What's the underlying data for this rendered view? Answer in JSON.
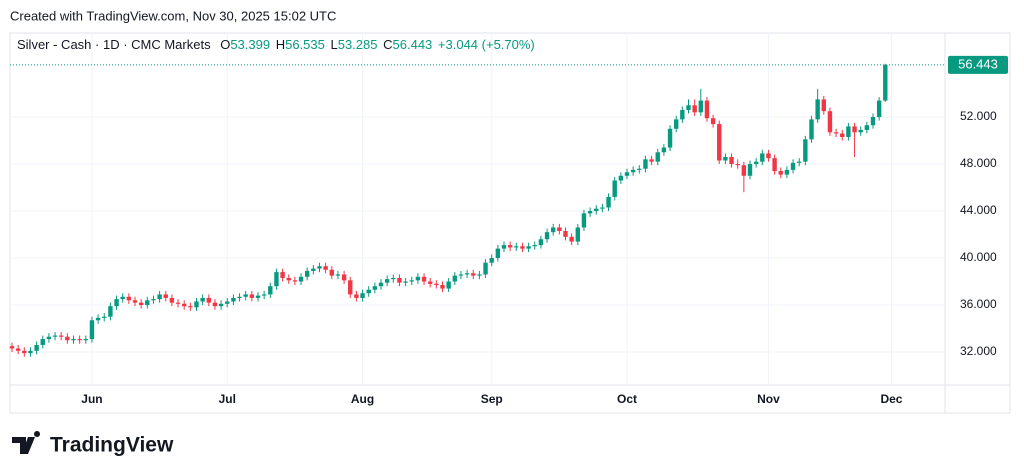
{
  "header": {
    "created": "Created with TradingView.com, Nov 30, 2025 15:02 UTC"
  },
  "chart_data": {
    "type": "candlestick",
    "title": "Silver - Cash · 1D · CMC Markets",
    "ohlc_labels": [
      "O",
      "H",
      "L",
      "C"
    ],
    "change_label": "+3.044 (+5.70%)",
    "categories": [
      null,
      null,
      null,
      null,
      null,
      null,
      null,
      null,
      null,
      null,
      null,
      null,
      null,
      "Jun",
      null,
      null,
      null,
      null,
      null,
      null,
      null,
      null,
      null,
      null,
      null,
      null,
      null,
      null,
      null,
      null,
      null,
      null,
      null,
      null,
      null,
      "Jul",
      null,
      null,
      null,
      null,
      null,
      null,
      null,
      null,
      null,
      null,
      null,
      null,
      null,
      null,
      null,
      null,
      null,
      null,
      null,
      null,
      null,
      "Aug",
      null,
      null,
      null,
      null,
      null,
      null,
      null,
      null,
      null,
      null,
      null,
      null,
      null,
      null,
      null,
      null,
      null,
      null,
      null,
      null,
      "Sep",
      null,
      null,
      null,
      null,
      null,
      null,
      null,
      null,
      null,
      null,
      null,
      null,
      null,
      null,
      null,
      null,
      null,
      null,
      null,
      null,
      null,
      "Oct",
      null,
      null,
      null,
      null,
      null,
      null,
      null,
      null,
      null,
      null,
      null,
      null,
      null,
      null,
      null,
      null,
      null,
      null,
      null,
      null,
      null,
      null,
      "Nov",
      null,
      null,
      null,
      null,
      null,
      null,
      null,
      null,
      null,
      null,
      null,
      null,
      null,
      null,
      null,
      null,
      null,
      null,
      null,
      "Dec"
    ],
    "open": [
      32.5,
      32.3,
      32.1,
      31.9,
      32.1,
      32.6,
      33.1,
      33.3,
      33.4,
      33.3,
      33.0,
      33.1,
      33.0,
      33.1,
      34.7,
      34.9,
      35.0,
      35.9,
      36.5,
      36.7,
      36.4,
      36.2,
      36.0,
      36.4,
      36.5,
      36.9,
      36.6,
      36.2,
      36.1,
      35.9,
      35.8,
      36.3,
      36.6,
      36.2,
      35.9,
      36.1,
      36.3,
      36.6,
      36.7,
      36.9,
      36.6,
      36.8,
      36.9,
      37.6,
      38.8,
      38.3,
      38.1,
      38.0,
      38.4,
      38.9,
      39.1,
      39.3,
      39.0,
      38.5,
      38.6,
      38.1,
      36.9,
      36.6,
      37.0,
      37.3,
      37.6,
      37.9,
      38.2,
      38.3,
      37.9,
      38.0,
      38.1,
      38.4,
      38.0,
      37.8,
      37.7,
      37.4,
      38.0,
      38.5,
      38.6,
      38.7,
      38.5,
      38.6,
      39.6,
      40.0,
      40.8,
      41.1,
      40.9,
      41.0,
      40.8,
      41.0,
      41.1,
      41.6,
      42.2,
      42.6,
      42.3,
      41.8,
      41.4,
      42.6,
      43.8,
      44.0,
      44.2,
      44.3,
      45.2,
      46.6,
      47.0,
      47.3,
      47.5,
      47.6,
      48.4,
      48.2,
      49.0,
      49.4,
      51.0,
      51.8,
      52.6,
      53.0,
      52.4,
      53.4,
      51.9,
      51.4,
      48.3,
      48.6,
      48.0,
      47.9,
      47.0,
      48.0,
      48.2,
      48.9,
      48.5,
      47.4,
      47.1,
      47.5,
      48.1,
      48.2,
      50.1,
      51.8,
      53.5,
      52.5,
      50.7,
      50.6,
      50.3,
      51.2,
      50.7,
      50.9,
      51.3,
      52.0,
      53.399,
      null
    ],
    "high": [
      32.8,
      32.6,
      32.4,
      32.4,
      32.9,
      33.4,
      33.6,
      33.7,
      33.7,
      33.6,
      33.4,
      33.4,
      33.4,
      35.0,
      35.2,
      35.3,
      36.2,
      36.8,
      37.0,
      37.0,
      36.7,
      36.5,
      36.7,
      36.8,
      37.2,
      37.2,
      36.9,
      36.5,
      36.4,
      36.2,
      36.6,
      36.9,
      36.9,
      36.5,
      36.4,
      36.6,
      36.9,
      37.0,
      37.2,
      37.2,
      37.1,
      37.2,
      37.9,
      39.1,
      39.1,
      38.6,
      38.4,
      38.7,
      39.2,
      39.4,
      39.6,
      39.6,
      39.3,
      38.9,
      38.9,
      38.4,
      37.2,
      37.3,
      37.6,
      37.9,
      38.2,
      38.5,
      38.6,
      38.6,
      38.3,
      38.4,
      38.7,
      38.7,
      38.3,
      38.1,
      38.0,
      38.3,
      38.8,
      38.9,
      39.0,
      39.0,
      38.9,
      39.9,
      40.3,
      41.1,
      41.4,
      41.4,
      41.3,
      41.3,
      41.3,
      41.4,
      41.9,
      42.5,
      42.9,
      42.9,
      42.6,
      42.1,
      42.9,
      44.1,
      44.3,
      44.5,
      44.6,
      45.5,
      46.9,
      47.3,
      47.6,
      47.8,
      47.9,
      48.7,
      48.7,
      49.3,
      49.7,
      51.3,
      52.1,
      52.9,
      53.5,
      53.5,
      54.4,
      53.7,
      52.2,
      51.7,
      48.9,
      48.9,
      48.4,
      48.2,
      48.3,
      48.5,
      49.2,
      49.2,
      48.8,
      47.7,
      47.8,
      48.4,
      48.5,
      50.4,
      52.1,
      54.4,
      53.8,
      52.8,
      51.0,
      50.9,
      51.5,
      51.5,
      51.2,
      51.6,
      52.3,
      53.7,
      56.535,
      null
    ],
    "low": [
      32.0,
      31.8,
      31.6,
      31.6,
      31.8,
      32.3,
      32.8,
      33.0,
      33.0,
      32.7,
      32.7,
      32.7,
      32.7,
      32.8,
      34.4,
      34.6,
      34.7,
      35.6,
      36.2,
      36.1,
      35.9,
      35.7,
      35.7,
      36.1,
      36.2,
      36.3,
      35.9,
      35.8,
      35.6,
      35.5,
      35.5,
      36.0,
      35.9,
      35.6,
      35.6,
      35.8,
      36.0,
      36.3,
      36.4,
      36.3,
      36.3,
      36.5,
      36.6,
      37.3,
      38.0,
      37.8,
      37.7,
      37.7,
      38.1,
      38.6,
      38.8,
      38.7,
      38.2,
      38.2,
      37.8,
      36.6,
      36.3,
      36.3,
      36.7,
      37.0,
      37.3,
      37.6,
      37.9,
      37.6,
      37.6,
      37.7,
      37.8,
      37.7,
      37.5,
      37.4,
      37.1,
      37.1,
      37.7,
      38.2,
      38.3,
      38.2,
      38.2,
      38.3,
      39.3,
      39.7,
      40.5,
      40.6,
      40.6,
      40.5,
      40.5,
      40.7,
      40.8,
      41.3,
      41.9,
      42.0,
      41.5,
      41.1,
      41.1,
      42.3,
      43.5,
      43.7,
      43.9,
      44.0,
      44.9,
      46.3,
      46.7,
      47.0,
      47.2,
      47.3,
      47.9,
      47.9,
      48.7,
      49.1,
      50.7,
      51.5,
      52.3,
      52.1,
      52.1,
      51.6,
      51.1,
      48.0,
      48.0,
      47.7,
      47.6,
      45.6,
      46.7,
      47.7,
      47.9,
      48.2,
      47.1,
      46.8,
      46.8,
      47.2,
      47.8,
      47.9,
      49.8,
      51.5,
      52.2,
      50.4,
      50.3,
      50.0,
      50.0,
      48.6,
      50.4,
      50.6,
      51.0,
      51.7,
      53.285,
      null
    ],
    "close": [
      32.3,
      32.1,
      31.9,
      32.1,
      32.6,
      33.1,
      33.3,
      33.4,
      33.3,
      33.0,
      33.1,
      33.0,
      33.1,
      34.7,
      34.9,
      35.0,
      35.9,
      36.5,
      36.7,
      36.4,
      36.2,
      36.0,
      36.4,
      36.5,
      36.9,
      36.6,
      36.2,
      36.1,
      35.9,
      35.8,
      36.3,
      36.6,
      36.2,
      35.9,
      36.1,
      36.3,
      36.6,
      36.7,
      36.9,
      36.6,
      36.8,
      36.9,
      37.6,
      38.8,
      38.3,
      38.1,
      38.0,
      38.4,
      38.9,
      39.1,
      39.3,
      39.0,
      38.5,
      38.6,
      38.1,
      36.9,
      36.6,
      37.0,
      37.3,
      37.6,
      37.9,
      38.2,
      38.3,
      37.9,
      38.0,
      38.1,
      38.4,
      38.0,
      37.8,
      37.7,
      37.4,
      38.0,
      38.5,
      38.6,
      38.7,
      38.5,
      38.6,
      39.6,
      40.0,
      40.8,
      41.1,
      40.9,
      41.0,
      40.8,
      41.0,
      41.1,
      41.6,
      42.2,
      42.6,
      42.3,
      41.8,
      41.4,
      42.6,
      43.8,
      44.0,
      44.2,
      44.3,
      45.2,
      46.6,
      47.0,
      47.3,
      47.5,
      47.6,
      48.4,
      48.2,
      49.0,
      49.4,
      51.0,
      51.8,
      52.6,
      53.0,
      52.4,
      53.4,
      51.9,
      51.4,
      48.3,
      48.6,
      48.0,
      47.9,
      47.0,
      48.0,
      48.2,
      48.9,
      48.5,
      47.4,
      47.1,
      47.5,
      48.1,
      48.2,
      50.1,
      51.8,
      53.5,
      52.5,
      50.7,
      50.6,
      50.3,
      51.2,
      50.7,
      50.9,
      51.3,
      52.0,
      53.4,
      56.443,
      null
    ],
    "up_color": "#089981",
    "down_color": "#f23645",
    "ylim": [
      29.19,
      57.28
    ],
    "yticks": [
      {
        "value": 32,
        "label": "32.000"
      },
      {
        "value": 36,
        "label": "36.000"
      },
      {
        "value": 40,
        "label": "40.000"
      },
      {
        "value": 44,
        "label": "44.000"
      },
      {
        "value": 48,
        "label": "48.000"
      },
      {
        "value": 52,
        "label": "52.000"
      }
    ],
    "grid": true,
    "last_price_line": true
  },
  "footer": {
    "logo": "TradingView"
  }
}
